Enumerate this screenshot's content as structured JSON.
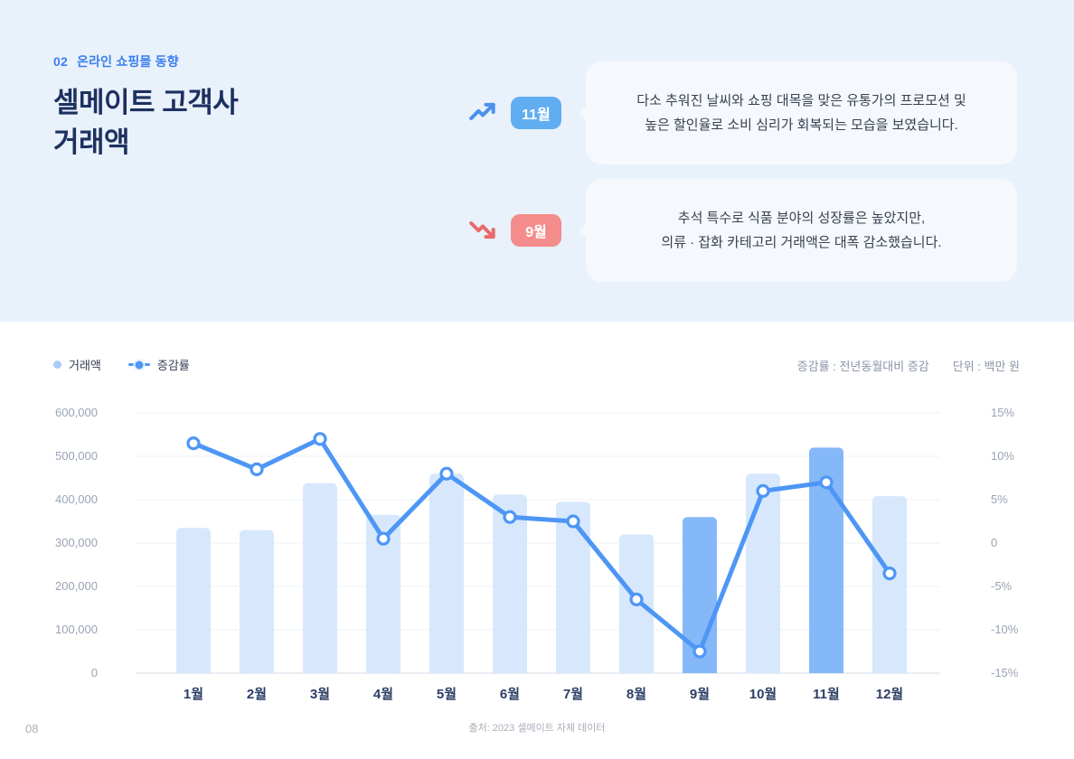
{
  "header": {
    "section_number": "02",
    "section_title": "온라인 쇼핑몰 동향",
    "title_line1": "셀메이트 고객사",
    "title_line2": "거래액"
  },
  "callouts": [
    {
      "badge": "11월",
      "trend": "up",
      "badge_color": "#61adf1",
      "accent_color": "#4a90ee",
      "text_line1": "다소 추워진 날씨와 쇼핑 대목을 맞은 유통가의 프로모션 및",
      "text_line2": "높은 할인율로 소비 심리가 회복되는 모습을 보였습니다."
    },
    {
      "badge": "9월",
      "trend": "down",
      "badge_color": "#f48c8c",
      "accent_color": "#e86a6a",
      "text_line1": "추석 특수로 식품 분야의 성장률은 높았지만,",
      "text_line2": "의류 · 잡화 카테고리 거래액은 대폭 감소했습니다."
    }
  ],
  "chart": {
    "legend_sales": "거래액",
    "legend_growth": "증감률",
    "note_growth": "증감률 : 전년동월대비 증감",
    "note_unit": "단위 : 백만 원"
  },
  "chart_data": {
    "type": "bar",
    "subtype": "bar+line combo",
    "title": "셀메이트 고객사 거래액 (월별)",
    "categories": [
      "1월",
      "2월",
      "3월",
      "4월",
      "5월",
      "6월",
      "7월",
      "8월",
      "9월",
      "10월",
      "11월",
      "12월"
    ],
    "series": [
      {
        "name": "거래액",
        "type": "bar",
        "axis": "left",
        "values": [
          335000,
          330000,
          438000,
          365000,
          460000,
          412000,
          395000,
          320000,
          360000,
          460000,
          520000,
          408000
        ],
        "highlight_indices": [
          8,
          10
        ]
      },
      {
        "name": "증감률",
        "type": "line",
        "axis": "right",
        "values": [
          11.5,
          8.5,
          12,
          0.5,
          8,
          3,
          2.5,
          -6.5,
          -12.5,
          6,
          7,
          -3.5
        ]
      }
    ],
    "left_axis": {
      "min": 0,
      "max": 600000,
      "tick_labels": [
        "600,000",
        "500,000",
        "400,000",
        "300,000",
        "200,000",
        "100,000",
        "0"
      ]
    },
    "right_axis": {
      "min": -15,
      "max": 15,
      "tick_labels": [
        "15%",
        "10%",
        "5%",
        "0",
        "-5%",
        "-10%",
        "-15%"
      ]
    },
    "grid": true,
    "legend_position": "top-left",
    "colors": {
      "bar": "#d7e8fd",
      "bar_highlight": "#85b8f8",
      "line": "#4e96f6",
      "dot_fill": "#ffffff",
      "grid": "#eef1f6",
      "axis_line": "#d6dbe4",
      "tick_text": "#9aa3b5",
      "month_text": "#2c3e66"
    }
  },
  "footer": {
    "page_number": "08",
    "source": "출처: 2023 셀메이트 자체 데이터"
  }
}
